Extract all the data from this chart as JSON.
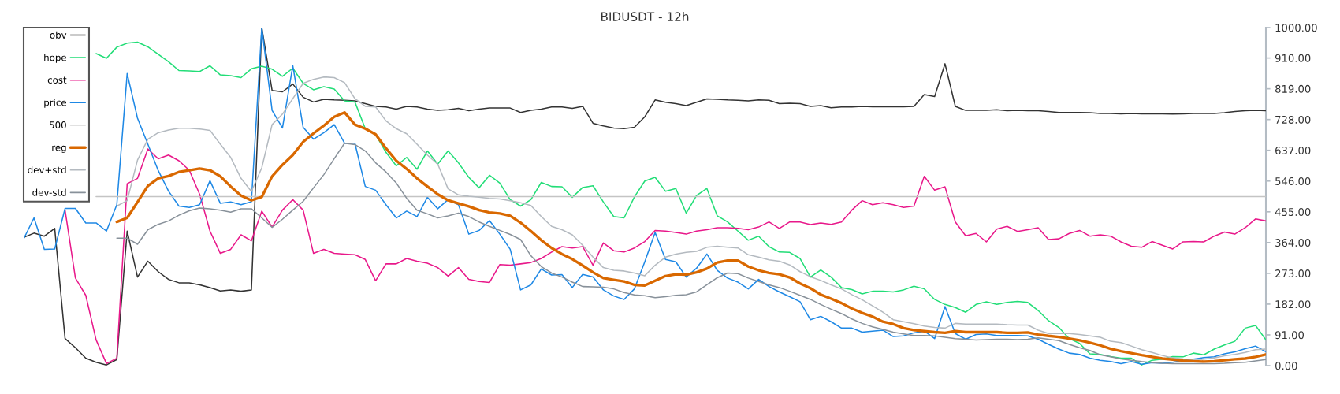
{
  "chart_data": {
    "type": "line",
    "title": "BIDUSDT - 12h",
    "categories": [
      null,
      null,
      null,
      null,
      null,
      null,
      null,
      null,
      null,
      null,
      null,
      null,
      null,
      null,
      null,
      null,
      null,
      null,
      null,
      null,
      null,
      null,
      null,
      null,
      null,
      null,
      null,
      null,
      null,
      null,
      null,
      null,
      null,
      null,
      null,
      null,
      null,
      null,
      null,
      null,
      null,
      null,
      null,
      null,
      null,
      null,
      null,
      null,
      null,
      null,
      null,
      null,
      null,
      null,
      null,
      null,
      null,
      null,
      null,
      null,
      null,
      null,
      null,
      null,
      null,
      null,
      null,
      null,
      null,
      null,
      null,
      null,
      null,
      null,
      null,
      null,
      null,
      null,
      null,
      null,
      null,
      null,
      null,
      null,
      null,
      null,
      null,
      null,
      null,
      null,
      null,
      null,
      null,
      null,
      null,
      null,
      null,
      null,
      null,
      null,
      null,
      null,
      null,
      null,
      null,
      null,
      null,
      null,
      null,
      null,
      null,
      null,
      null,
      null,
      null,
      null,
      null,
      null,
      null,
      null,
      null
    ],
    "ylim": [
      0,
      1000
    ],
    "yticks": [
      {
        "value": 0,
        "label": "0.00"
      },
      {
        "value": 91,
        "label": "91.00"
      },
      {
        "value": 182,
        "label": "182.00"
      },
      {
        "value": 273,
        "label": "273.00"
      },
      {
        "value": 364,
        "label": "364.00"
      },
      {
        "value": 455,
        "label": "455.00"
      },
      {
        "value": 546,
        "label": "546.00"
      },
      {
        "value": 637,
        "label": "637.00"
      },
      {
        "value": 728,
        "label": "728.00"
      },
      {
        "value": 819,
        "label": "819.00"
      },
      {
        "value": 910,
        "label": "910.00"
      },
      {
        "value": 1000,
        "label": "1000.00"
      }
    ],
    "tick_labels": "y",
    "grid": false,
    "legend": "top left",
    "series": [
      {
        "name": "obv",
        "color": "#333333",
        "values": [
          379,
          392,
          383,
          406,
          80,
          53,
          22,
          10,
          2,
          18,
          398,
          262,
          309,
          278,
          255,
          245,
          245,
          239,
          231,
          221,
          224,
          220,
          224,
          1000,
          814,
          810,
          833,
          794,
          780,
          788,
          786,
          785,
          783,
          775,
          767,
          765,
          759,
          767,
          765,
          759,
          755,
          757,
          761,
          754,
          759,
          762,
          762,
          762,
          749,
          755,
          759,
          765,
          765,
          761,
          767,
          717,
          709,
          703,
          701,
          705,
          736,
          786,
          779,
          775,
          769,
          779,
          789,
          788,
          786,
          785,
          783,
          786,
          785,
          775,
          776,
          775,
          767,
          769,
          763,
          765,
          765,
          767,
          766,
          766,
          766,
          766,
          767,
          802,
          796,
          893,
          767,
          755,
          755,
          755,
          757,
          754,
          755,
          754,
          754,
          752,
          749,
          749,
          749,
          748,
          746,
          746,
          745,
          746,
          745,
          745,
          745,
          744,
          745,
          746,
          746,
          746,
          748,
          752,
          754,
          755,
          754
        ]
      },
      {
        "name": "hope",
        "color": "#22dd77",
        "values": [
          null,
          null,
          null,
          null,
          null,
          null,
          null,
          923,
          909,
          942,
          954,
          957,
          943,
          921,
          899,
          873,
          872,
          870,
          887,
          860,
          858,
          852,
          878,
          886,
          877,
          856,
          880,
          835,
          816,
          825,
          818,
          783,
          780,
          701,
          684,
          631,
          591,
          616,
          581,
          635,
          596,
          635,
          600,
          557,
          526,
          563,
          540,
          491,
          472,
          491,
          542,
          530,
          529,
          498,
          527,
          532,
          484,
          441,
          437,
          499,
          546,
          557,
          516,
          524,
          451,
          503,
          524,
          443,
          425,
          398,
          371,
          383,
          352,
          336,
          335,
          317,
          262,
          283,
          262,
          231,
          225,
          212,
          220,
          220,
          218,
          224,
          235,
          227,
          196,
          181,
          172,
          158,
          181,
          189,
          181,
          187,
          190,
          187,
          163,
          133,
          113,
          80,
          66,
          35,
          33,
          27,
          22,
          22,
          2,
          16,
          19,
          27,
          26,
          37,
          32,
          49,
          61,
          72,
          111,
          119,
          76
        ]
      },
      {
        "name": "cost",
        "color": "#e8188a",
        "values": [
          null,
          null,
          null,
          null,
          460,
          259,
          208,
          76,
          6,
          22,
          538,
          554,
          641,
          612,
          623,
          606,
          578,
          507,
          398,
          332,
          344,
          387,
          369,
          457,
          410,
          460,
          491,
          460,
          332,
          344,
          332,
          330,
          328,
          314,
          251,
          301,
          301,
          317,
          309,
          303,
          290,
          265,
          290,
          255,
          249,
          246,
          299,
          297,
          301,
          305,
          317,
          336,
          352,
          348,
          352,
          297,
          363,
          340,
          336,
          348,
          367,
          400,
          398,
          394,
          389,
          398,
          402,
          408,
          408,
          406,
          402,
          410,
          425,
          406,
          425,
          425,
          417,
          422,
          418,
          425,
          460,
          488,
          476,
          482,
          476,
          468,
          472,
          560,
          519,
          529,
          425,
          384,
          391,
          366,
          404,
          412,
          397,
          402,
          408,
          373,
          375,
          391,
          400,
          383,
          387,
          383,
          366,
          353,
          350,
          367,
          356,
          345,
          366,
          367,
          366,
          383,
          395,
          389,
          408,
          434,
          428
        ]
      },
      {
        "name": "price",
        "color": "#1e88e5",
        "values": [
          375,
          437,
          344,
          345,
          465,
          465,
          422,
          422,
          398,
          476,
          864,
          732,
          655,
          577,
          516,
          472,
          468,
          476,
          547,
          480,
          484,
          476,
          485,
          1000,
          755,
          703,
          887,
          705,
          670,
          689,
          713,
          658,
          658,
          530,
          519,
          476,
          437,
          457,
          441,
          498,
          464,
          491,
          476,
          389,
          400,
          429,
          389,
          344,
          224,
          239,
          286,
          268,
          269,
          231,
          270,
          262,
          224,
          206,
          196,
          227,
          307,
          394,
          314,
          307,
          262,
          288,
          330,
          282,
          259,
          247,
          227,
          255,
          234,
          218,
          204,
          189,
          136,
          146,
          130,
          111,
          111,
          99,
          102,
          105,
          86,
          88,
          97,
          102,
          80,
          175,
          95,
          78,
          92,
          94,
          89,
          89,
          89,
          88,
          78,
          63,
          49,
          37,
          33,
          22,
          16,
          12,
          6,
          12,
          4,
          9,
          7,
          10,
          16,
          19,
          24,
          26,
          35,
          41,
          50,
          58,
          41
        ]
      },
      {
        "name": "500",
        "color": "#c4c4c4",
        "values": [
          null,
          null,
          null,
          null,
          null,
          null,
          null,
          500,
          500,
          500,
          500,
          500,
          500,
          500,
          500,
          500,
          500,
          500,
          500,
          500,
          500,
          500,
          500,
          500,
          500,
          500,
          500,
          500,
          500,
          500,
          500,
          500,
          500,
          500,
          500,
          500,
          500,
          500,
          500,
          500,
          500,
          500,
          500,
          500,
          500,
          500,
          500,
          500,
          500,
          500,
          500,
          500,
          500,
          500,
          500,
          500,
          500,
          500,
          500,
          500,
          500,
          500,
          500,
          500,
          500,
          500,
          500,
          500,
          500,
          500,
          500,
          500,
          500,
          500,
          500,
          500,
          500,
          500,
          500,
          500,
          500,
          500,
          500,
          500,
          500,
          500,
          500,
          500,
          500,
          500,
          500,
          500,
          500,
          500,
          500,
          500,
          500,
          500,
          500,
          500,
          500,
          500,
          500,
          500,
          500,
          500,
          500,
          500,
          500,
          500,
          500,
          500,
          500,
          500,
          500,
          500,
          500,
          500,
          500,
          500,
          500
        ]
      },
      {
        "name": "reg",
        "color": "#d96800",
        "values": [
          null,
          null,
          null,
          null,
          null,
          null,
          null,
          null,
          null,
          425,
          437,
          484,
          532,
          554,
          561,
          573,
          578,
          583,
          578,
          560,
          530,
          503,
          489,
          499,
          560,
          594,
          623,
          662,
          687,
          710,
          736,
          749,
          713,
          701,
          684,
          643,
          606,
          582,
          554,
          530,
          507,
          489,
          480,
          471,
          460,
          453,
          450,
          443,
          423,
          398,
          371,
          348,
          330,
          315,
          296,
          276,
          259,
          254,
          249,
          239,
          237,
          251,
          265,
          270,
          269,
          276,
          287,
          305,
          311,
          311,
          293,
          282,
          274,
          270,
          261,
          243,
          229,
          210,
          198,
          185,
          169,
          156,
          145,
          130,
          123,
          111,
          105,
          102,
          99,
          97,
          102,
          99,
          99,
          99,
          99,
          97,
          97,
          98,
          92,
          88,
          85,
          80,
          75,
          68,
          60,
          50,
          43,
          37,
          31,
          26,
          21,
          18,
          15,
          13,
          12,
          13,
          16,
          19,
          21,
          26,
          33
        ]
      },
      {
        "name": "dev+std",
        "color": "#b4bac0",
        "values": [
          null,
          null,
          null,
          null,
          null,
          null,
          null,
          null,
          null,
          472,
          488,
          608,
          670,
          689,
          697,
          702,
          702,
          700,
          696,
          655,
          616,
          554,
          515,
          585,
          713,
          744,
          790,
          835,
          847,
          854,
          852,
          837,
          790,
          767,
          765,
          724,
          701,
          686,
          655,
          623,
          596,
          523,
          505,
          501,
          498,
          495,
          493,
          488,
          482,
          474,
          441,
          412,
          402,
          387,
          356,
          321,
          290,
          282,
          280,
          274,
          266,
          297,
          321,
          330,
          335,
          338,
          350,
          353,
          350,
          348,
          328,
          321,
          313,
          309,
          298,
          278,
          263,
          252,
          239,
          227,
          210,
          195,
          177,
          158,
          136,
          130,
          124,
          117,
          113,
          111,
          125,
          123,
          123,
          123,
          123,
          121,
          120,
          120,
          105,
          95,
          95,
          95,
          92,
          88,
          84,
          72,
          68,
          58,
          47,
          39,
          30,
          23,
          20,
          18,
          19,
          23,
          29,
          33,
          39,
          47,
          49
        ]
      },
      {
        "name": "dev-std",
        "color": "#88919a",
        "values": [
          null,
          null,
          null,
          null,
          null,
          null,
          null,
          null,
          null,
          377,
          377,
          359,
          402,
          418,
          428,
          445,
          458,
          466,
          464,
          460,
          454,
          464,
          464,
          437,
          409,
          433,
          460,
          486,
          526,
          565,
          612,
          658,
          654,
          635,
          600,
          573,
          540,
          495,
          460,
          449,
          437,
          443,
          451,
          441,
          425,
          412,
          400,
          388,
          373,
          325,
          293,
          274,
          262,
          247,
          234,
          233,
          232,
          227,
          216,
          209,
          207,
          201,
          204,
          208,
          210,
          218,
          239,
          260,
          274,
          272,
          259,
          249,
          239,
          231,
          220,
          208,
          196,
          181,
          167,
          154,
          138,
          125,
          115,
          107,
          99,
          94,
          89,
          89,
          88,
          84,
          80,
          78,
          76,
          77,
          78,
          78,
          77,
          78,
          82,
          78,
          74,
          63,
          53,
          45,
          32,
          26,
          20,
          16,
          12,
          9,
          7,
          6,
          6,
          6,
          6,
          6,
          7,
          9,
          10,
          14,
          18
        ]
      }
    ]
  }
}
